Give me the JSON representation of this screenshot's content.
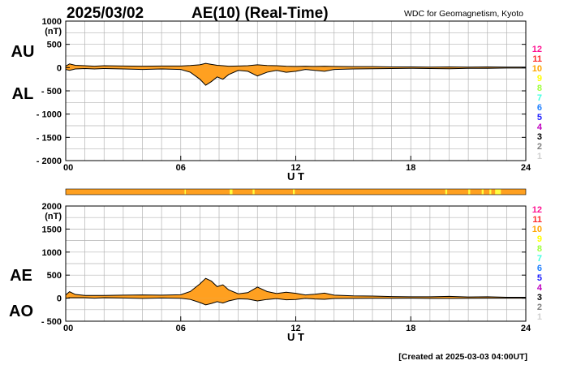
{
  "header": {
    "date": "2025/03/02",
    "title": "AE(10) (Real-Time)",
    "source": "WDC for Geomagnetism, Kyoto"
  },
  "footer": {
    "created": "[Created at 2025-03-03 04:00UT]"
  },
  "colors": {
    "fill": "#ffa020",
    "line": "#000000",
    "grid": "#b4b4b4",
    "strip_base": "#ffa020",
    "strip_highlight": "#ffff40",
    "station_count_colors": {
      "12": "#ff1493",
      "11": "#ff2a2a",
      "10": "#ffa500",
      "9": "#ffff00",
      "8": "#a0ff40",
      "7": "#40ffe0",
      "6": "#2080ff",
      "5": "#2020ff",
      "4": "#c000c0",
      "3": "#000000",
      "2": "#808080",
      "1": "#d0d0d0"
    }
  },
  "legend": {
    "station_counts": [
      "12",
      "11",
      "10",
      "9",
      "8",
      "7",
      "6",
      "5",
      "4",
      "3",
      "2",
      "1"
    ]
  },
  "chart_data": [
    {
      "type": "area",
      "panel": "AU/AL",
      "series_labels": [
        "AU",
        "AL"
      ],
      "ylabel": "(nT)",
      "ylim": [
        -2000,
        1000
      ],
      "yticks": [
        1000,
        500,
        0,
        -500,
        -1000,
        -1500,
        -2000
      ],
      "ytick_labels": [
        "1000",
        "500",
        "0",
        "- 500",
        "- 1000",
        "- 1500",
        "- 2000"
      ],
      "xlabel": "U T",
      "xlim": [
        0,
        24
      ],
      "xticks": [
        0,
        6,
        12,
        18,
        24
      ],
      "xtick_labels": [
        "00",
        "06",
        "12",
        "18",
        "24"
      ],
      "grid": true,
      "series": [
        {
          "name": "AU",
          "x": [
            0,
            0.2,
            0.5,
            1,
            1.5,
            2,
            3,
            4,
            5,
            6,
            6.5,
            7,
            7.3,
            7.6,
            7.9,
            8.2,
            8.5,
            9,
            9.5,
            10,
            10.5,
            11,
            11.5,
            12,
            12.5,
            13,
            13.5,
            14,
            15,
            16,
            17,
            18,
            19,
            20,
            21,
            22,
            23,
            24
          ],
          "values": [
            30,
            80,
            50,
            40,
            30,
            40,
            35,
            30,
            35,
            35,
            45,
            60,
            90,
            70,
            50,
            40,
            30,
            35,
            40,
            60,
            45,
            40,
            30,
            25,
            30,
            25,
            30,
            25,
            20,
            20,
            15,
            15,
            10,
            15,
            10,
            15,
            10,
            10
          ]
        },
        {
          "name": "AL",
          "x": [
            0,
            0.2,
            0.5,
            1,
            1.5,
            2,
            3,
            4,
            5,
            6,
            6.5,
            7,
            7.3,
            7.6,
            7.9,
            8.2,
            8.5,
            9,
            9.5,
            10,
            10.5,
            11,
            11.5,
            12,
            12.5,
            13,
            13.5,
            14,
            15,
            16,
            17,
            18,
            19,
            20,
            21,
            22,
            23,
            24
          ],
          "values": [
            -40,
            -60,
            -30,
            -20,
            -30,
            -20,
            -30,
            -40,
            -30,
            -40,
            -100,
            -250,
            -380,
            -300,
            -200,
            -250,
            -150,
            -60,
            -80,
            -180,
            -100,
            -60,
            -100,
            -80,
            -40,
            -60,
            -80,
            -40,
            -30,
            -25,
            -20,
            -15,
            -20,
            -25,
            -15,
            -15,
            -10,
            -10
          ]
        }
      ]
    },
    {
      "type": "area",
      "panel": "AE/AO",
      "series_labels": [
        "AE",
        "AO"
      ],
      "ylabel": "(nT)",
      "ylim": [
        -500,
        2000
      ],
      "yticks": [
        2000,
        1500,
        1000,
        500,
        0,
        -500
      ],
      "ytick_labels": [
        "2000",
        "1500",
        "1000",
        "500",
        "0",
        "- 500"
      ],
      "xlabel": "U T",
      "xlim": [
        0,
        24
      ],
      "xticks": [
        0,
        6,
        12,
        18,
        24
      ],
      "xtick_labels": [
        "00",
        "06",
        "12",
        "18",
        "24"
      ],
      "grid": true,
      "series": [
        {
          "name": "AE",
          "x": [
            0,
            0.2,
            0.5,
            1,
            1.5,
            2,
            3,
            4,
            5,
            6,
            6.5,
            7,
            7.3,
            7.6,
            7.9,
            8.2,
            8.5,
            9,
            9.5,
            10,
            10.5,
            11,
            11.5,
            12,
            12.5,
            13,
            13.5,
            14,
            15,
            16,
            17,
            18,
            19,
            20,
            21,
            22,
            23,
            24
          ],
          "values": [
            70,
            140,
            80,
            60,
            60,
            60,
            65,
            70,
            65,
            75,
            145,
            310,
            430,
            370,
            250,
            290,
            180,
            95,
            120,
            240,
            145,
            100,
            130,
            105,
            70,
            85,
            110,
            65,
            50,
            45,
            35,
            30,
            30,
            40,
            25,
            30,
            20,
            20
          ]
        },
        {
          "name": "AO",
          "x": [
            0,
            0.2,
            0.5,
            1,
            1.5,
            2,
            3,
            4,
            5,
            6,
            6.5,
            7,
            7.3,
            7.6,
            7.9,
            8.2,
            8.5,
            9,
            9.5,
            10,
            10.5,
            11,
            11.5,
            12,
            12.5,
            13,
            13.5,
            14,
            15,
            16,
            17,
            18,
            19,
            20,
            21,
            22,
            23,
            24
          ],
          "values": [
            -5,
            10,
            10,
            10,
            0,
            10,
            3,
            -5,
            3,
            -3,
            -28,
            -95,
            -145,
            -115,
            -75,
            -105,
            -60,
            -13,
            -20,
            -60,
            -28,
            -10,
            -35,
            -28,
            -5,
            -18,
            -25,
            -8,
            -5,
            -3,
            -3,
            0,
            -5,
            -5,
            -3,
            0,
            0,
            0
          ]
        }
      ]
    }
  ],
  "strip": {
    "xlim": [
      0,
      24
    ],
    "highlight_ranges": [
      [
        6.2,
        6.25
      ],
      [
        8.55,
        8.7
      ],
      [
        9.75,
        9.85
      ],
      [
        11.85,
        11.95
      ],
      [
        19.8,
        19.9
      ],
      [
        21.0,
        21.1
      ],
      [
        21.7,
        21.8
      ],
      [
        22.1,
        22.2
      ],
      [
        22.4,
        22.7
      ]
    ]
  }
}
